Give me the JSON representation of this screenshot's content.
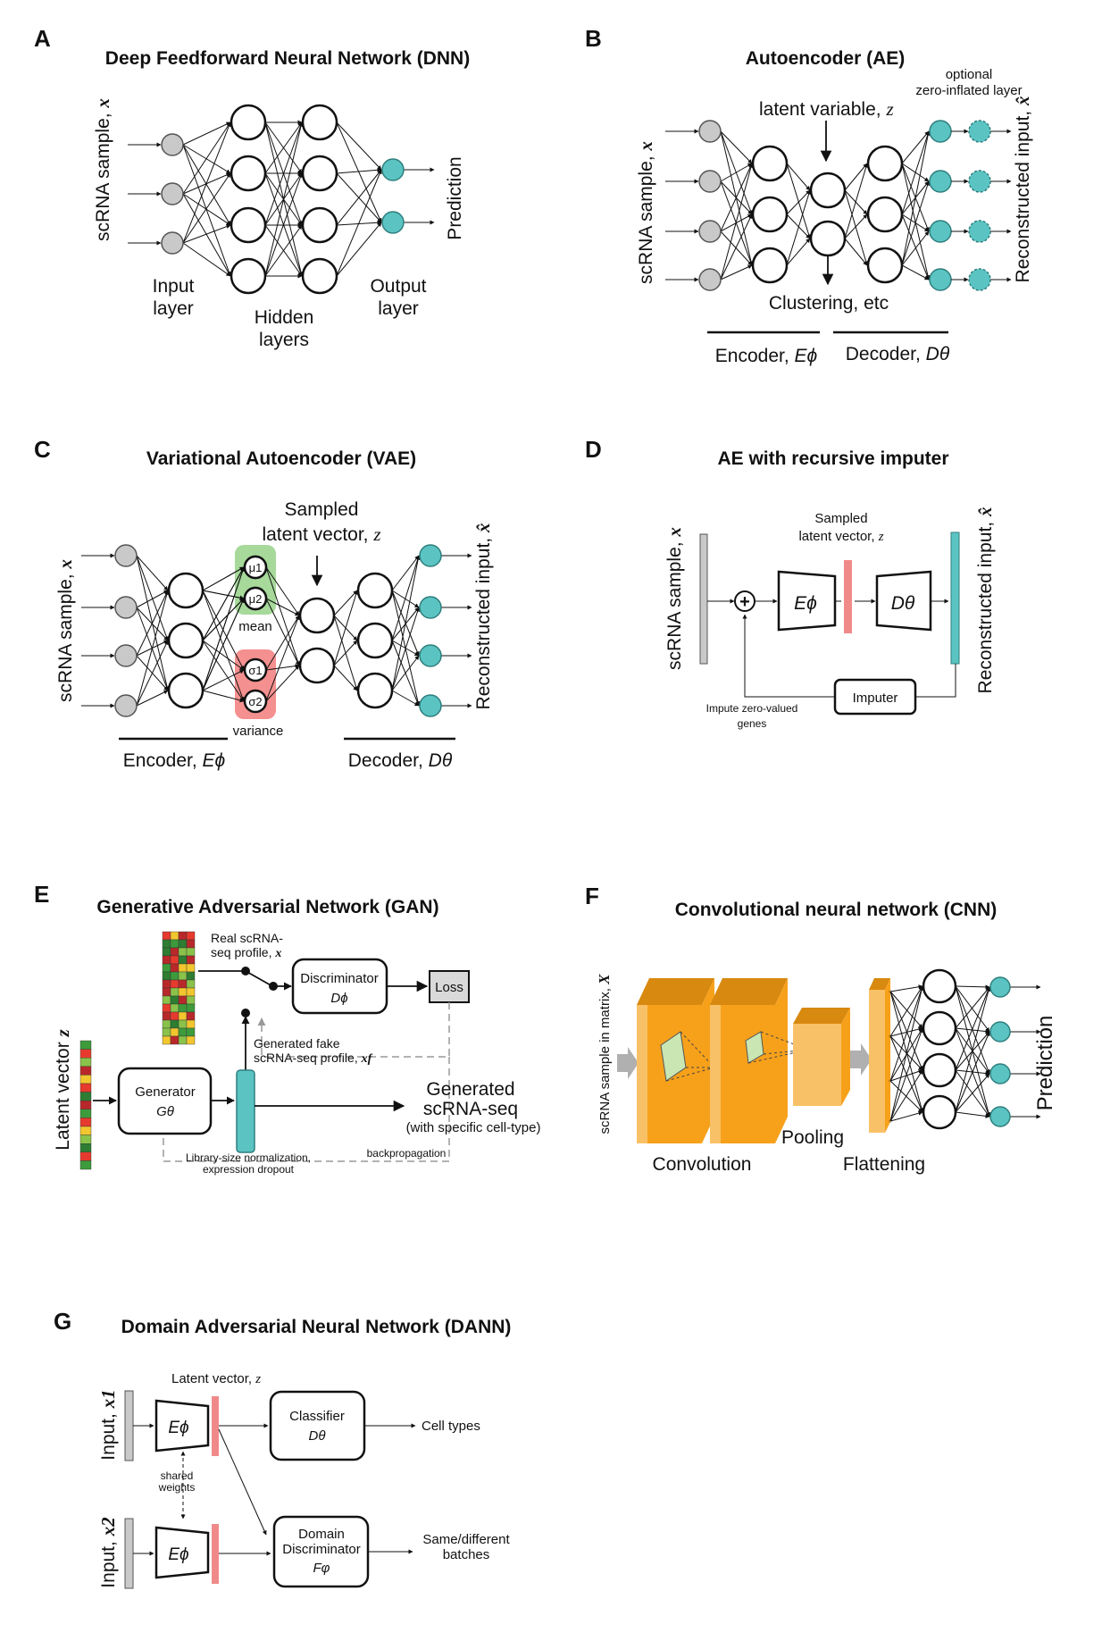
{
  "panels": {
    "A": {
      "letter": "A",
      "title": "Deep Feedforward Neural Network (DNN)",
      "input_side": "scRNA sample,",
      "input_var": "x",
      "input_layer_1": "Input",
      "input_layer_2": "layer",
      "hidden_1": "Hidden",
      "hidden_2": "layers",
      "output_1": "Output",
      "output_2": "layer",
      "prediction": "Prediction"
    },
    "B": {
      "letter": "B",
      "title": "Autoencoder (AE)",
      "latent": "latent variable,",
      "latent_var": "z",
      "optional_1": "optional",
      "optional_2": "zero-inflated layer",
      "input_side": "scRNA sample,",
      "input_var": "x",
      "recon": "Reconstructed input,",
      "recon_var": "x̂",
      "clustering": "Clustering, etc",
      "encoder": "Encoder,",
      "encoder_sym": "Eϕ",
      "decoder": "Decoder,",
      "decoder_sym": "Dθ"
    },
    "C": {
      "letter": "C",
      "title": "Variational Autoencoder (VAE)",
      "sampled_1": "Sampled",
      "sampled_2": "latent vector,",
      "latent_var": "z",
      "mu1": "μ1",
      "mu2": "μ2",
      "mean": "mean",
      "s1": "σ1",
      "s2": "σ2",
      "variance": "variance",
      "input_side": "scRNA sample,",
      "input_var": "x",
      "recon": "Reconstructed input,",
      "recon_var": "x̂",
      "encoder": "Encoder,",
      "encoder_sym": "Eϕ",
      "decoder": "Decoder,",
      "decoder_sym": "Dθ"
    },
    "D": {
      "letter": "D",
      "title": "AE with recursive imputer",
      "sampled_1": "Sampled",
      "sampled_2": "latent vector,",
      "latent_var": "z",
      "input_side": "scRNA sample,",
      "input_var": "x",
      "recon": "Reconstructed input,",
      "recon_var": "x̂",
      "enc": "Eϕ",
      "dec": "Dθ",
      "imputer": "Imputer",
      "impute_1": "Impute zero-valued",
      "impute_2": "genes",
      "plus": "+"
    },
    "E": {
      "letter": "E",
      "title": "Generative Adversarial Network (GAN)",
      "real_1": "Real scRNA-",
      "real_2": "seq profile,",
      "real_var": "x",
      "discriminator": "Discriminator",
      "disc_sym": "Dϕ",
      "loss": "Loss",
      "fake_1": "Generated fake",
      "fake_2": "scRNA-seq profile,",
      "fake_var": "xf",
      "latent_side": "Latent vector",
      "latent_var": "z",
      "generator": "Generator",
      "gen_sym": "Gθ",
      "generated_1": "Generated",
      "generated_2": "scRNA-seq",
      "generated_3": "(with specific cell-type)",
      "norm_1": "Library-size normalization,",
      "norm_2": "expression dropout",
      "backprop": "backpropagation"
    },
    "F": {
      "letter": "F",
      "title": "Convolutional neural network (CNN)",
      "input_side": "scRNA sample in matrix,",
      "input_var": "X",
      "convolution": "Convolution",
      "pooling": "Pooling",
      "flattening": "Flattening",
      "prediction": "Prediction"
    },
    "G": {
      "letter": "G",
      "title": "Domain Adversarial Neural Network (DANN)",
      "latent": "Latent vector,",
      "latent_var": "z",
      "input1": "Input,",
      "input1_var": "x1",
      "input2": "Input,",
      "input2_var": "x2",
      "enc": "Eϕ",
      "shared_1": "shared",
      "shared_2": "weights",
      "classifier": "Classifier",
      "class_sym": "Dθ",
      "cell_types": "Cell types",
      "domain_1": "Domain",
      "domain_2": "Discriminator",
      "domain_sym": "Fφ",
      "same_1": "Same/different",
      "same_2": "batches"
    }
  },
  "colors": {
    "input_node": "#c9c9c9",
    "output_node": "#5bc4c2",
    "latent_bar": "#f08a8a",
    "mean_box": "#a6d99a",
    "var_box": "#f4908f",
    "conv_face": "#f7a11b",
    "conv_side": "#f9c167",
    "conv_top": "#d8890f"
  },
  "heatmap_colors": [
    "#e63a2e",
    "#3d9b3b",
    "#f2c62e",
    "#8ac24a",
    "#b8282a",
    "#2e7d32"
  ]
}
